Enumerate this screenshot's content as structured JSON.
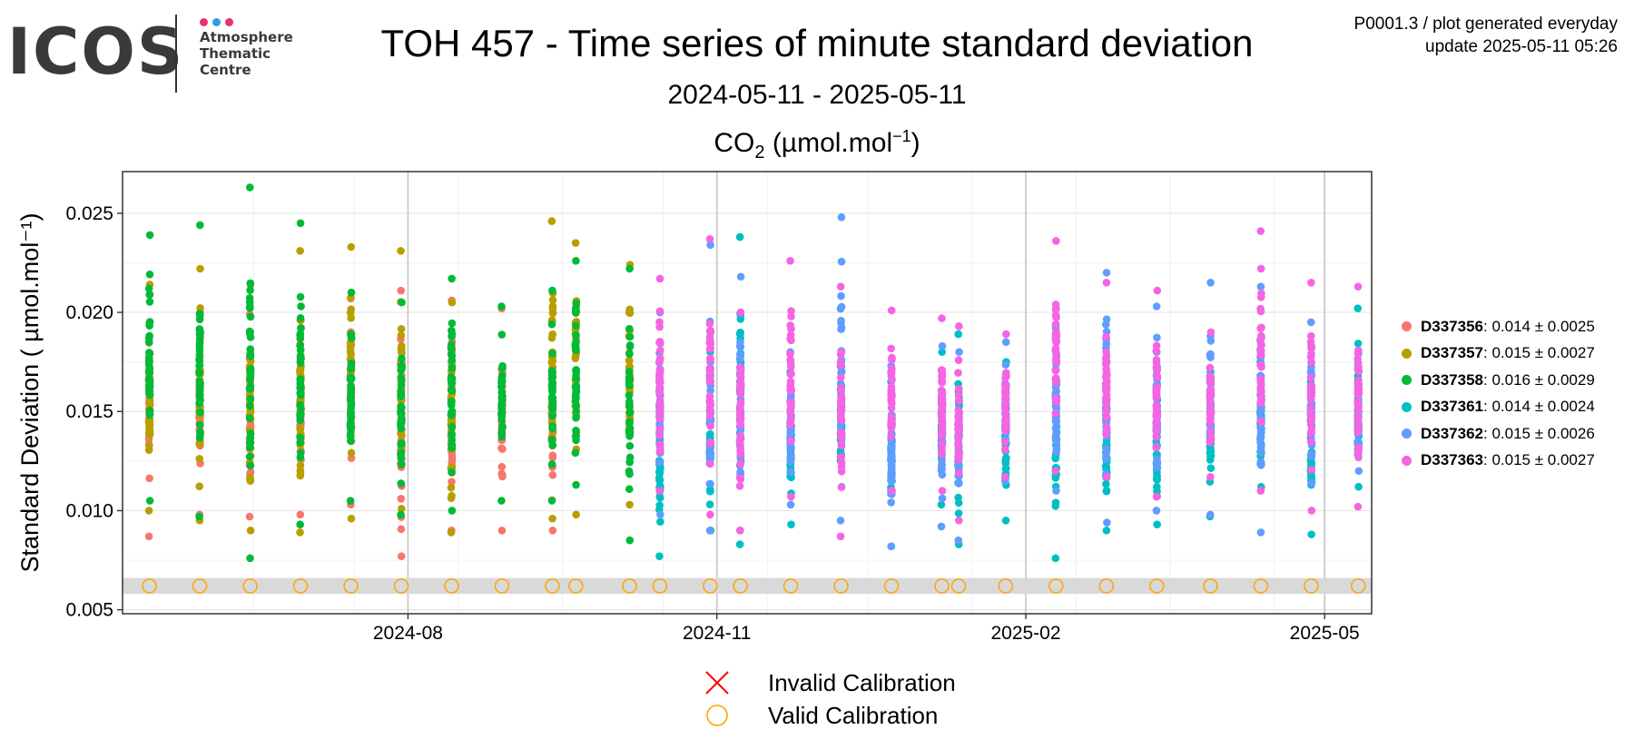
{
  "logo": {
    "text": "ICOS",
    "sub": [
      "Atmosphere",
      "Thematic",
      "Centre"
    ],
    "dot_colors": [
      "#e8336d",
      "#2f9de6",
      "#e8336d"
    ]
  },
  "header": {
    "title": "TOH 457 - Time series of minute standard deviation",
    "subtitle": "2024-05-11 - 2025-05-11",
    "species_base": "CO",
    "species_sub": "2",
    "species_unit_open": " (µmol.mol",
    "species_unit_sup": "−1",
    "species_unit_close": ")",
    "meta_line1": "P0001.3 / plot generated everyday",
    "meta_line2": "update  2025-05-11 05:26"
  },
  "legend": [
    {
      "id": "D337356",
      "stat": ": 0.014 ± 0.0025",
      "color": "#f8766d"
    },
    {
      "id": "D337357",
      "stat": ": 0.015 ± 0.0027",
      "color": "#b79f00"
    },
    {
      "id": "D337358",
      "stat": ": 0.016 ± 0.0029",
      "color": "#00ba38"
    },
    {
      "id": "D337361",
      "stat": ": 0.014 ± 0.0024",
      "color": "#00bfc4"
    },
    {
      "id": "D337362",
      "stat": ": 0.015 ± 0.0026",
      "color": "#619cff"
    },
    {
      "id": "D337363",
      "stat": ": 0.015 ± 0.0027",
      "color": "#f564e3"
    }
  ],
  "bottom_legend": {
    "invalid": "Invalid Calibration",
    "valid": "Valid Calibration",
    "invalid_color": "#ff0000",
    "valid_color": "#ffa500"
  },
  "chart_data": {
    "type": "scatter",
    "ylabel": "Standard Deviation ( µmol.mol⁻¹)",
    "xlabel": "",
    "x_range": [
      "2024-05-11",
      "2025-05-11"
    ],
    "ylim": [
      0.0048,
      0.0271
    ],
    "yticks": [
      0.005,
      0.01,
      0.015,
      0.02,
      0.025
    ],
    "ytick_labels": [
      "0.005",
      "0.010",
      "0.015",
      "0.020",
      "0.025"
    ],
    "xticks": [
      "2024-08-01",
      "2024-11-01",
      "2025-02-01",
      "2025-05-01"
    ],
    "xtick_labels": [
      "2024-08",
      "2024-11",
      "2025-02",
      "2025-05"
    ],
    "grid": true,
    "calibration_band": [
      0.0058,
      0.0066
    ],
    "calibration_level": 0.0062,
    "calibration_dates": [
      "2024-05-16",
      "2024-05-31",
      "2024-06-15",
      "2024-06-30",
      "2024-07-15",
      "2024-07-30",
      "2024-08-14",
      "2024-08-29",
      "2024-09-13",
      "2024-09-20",
      "2024-10-06",
      "2024-10-15",
      "2024-10-30",
      "2024-11-08",
      "2024-11-23",
      "2024-12-08",
      "2024-12-23",
      "2025-01-07",
      "2025-01-12",
      "2025-01-26",
      "2025-02-10",
      "2025-02-25",
      "2025-03-12",
      "2025-03-28",
      "2025-04-12",
      "2025-04-27",
      "2025-05-11"
    ],
    "series": [
      {
        "name": "D337356",
        "color": "#f8766d",
        "dates": [
          "2024-05-16",
          "2024-05-31",
          "2024-06-15",
          "2024-06-30",
          "2024-07-15",
          "2024-07-30",
          "2024-08-14",
          "2024-08-29",
          "2024-09-13"
        ],
        "min": [
          0.0087,
          0.0098,
          0.0097,
          0.0098,
          0.0103,
          0.0077,
          0.009,
          0.009,
          0.009
        ],
        "max": [
          0.0209,
          0.02,
          0.0199,
          0.0196,
          0.0207,
          0.0211,
          0.0206,
          0.0202,
          0.02
        ]
      },
      {
        "name": "D337357",
        "color": "#b79f00",
        "dates": [
          "2024-05-16",
          "2024-05-31",
          "2024-06-15",
          "2024-06-30",
          "2024-07-15",
          "2024-07-30",
          "2024-08-14",
          "2024-09-13",
          "2024-09-20",
          "2024-10-06"
        ],
        "min": [
          0.01,
          0.0095,
          0.009,
          0.0089,
          0.0096,
          0.0101,
          0.0089,
          0.0096,
          0.0098,
          0.0103
        ],
        "max": [
          0.0214,
          0.0222,
          0.0214,
          0.0231,
          0.0233,
          0.0231,
          0.0205,
          0.0246,
          0.0235,
          0.0224
        ]
      },
      {
        "name": "D337358",
        "color": "#00ba38",
        "dates": [
          "2024-05-16",
          "2024-05-31",
          "2024-06-15",
          "2024-06-30",
          "2024-07-15",
          "2024-07-30",
          "2024-08-14",
          "2024-08-29",
          "2024-09-13",
          "2024-09-20",
          "2024-10-06"
        ],
        "min": [
          0.0105,
          0.0097,
          0.0076,
          0.0093,
          0.0105,
          0.0098,
          0.01,
          0.0105,
          0.0105,
          0.0113,
          0.0085
        ],
        "max": [
          0.0239,
          0.0244,
          0.0263,
          0.0245,
          0.021,
          0.0205,
          0.0217,
          0.0203,
          0.0211,
          0.0226,
          0.0222
        ]
      },
      {
        "name": "D337361",
        "color": "#00bfc4",
        "dates": [
          "2024-10-15",
          "2024-10-30",
          "2024-11-08",
          "2024-11-23",
          "2024-12-08",
          "2024-12-23",
          "2025-01-07",
          "2025-01-12",
          "2025-01-26",
          "2025-02-10",
          "2025-02-25",
          "2025-03-12",
          "2025-03-28",
          "2025-04-12",
          "2025-04-27",
          "2025-05-11"
        ],
        "min": [
          0.0077,
          0.009,
          0.0083,
          0.0093,
          0.0112,
          0.0082,
          0.0103,
          0.0083,
          0.0095,
          0.0076,
          0.009,
          0.0093,
          0.0097,
          0.0112,
          0.0088,
          0.0112
        ],
        "max": [
          0.016,
          0.018,
          0.0238,
          0.017,
          0.017,
          0.0165,
          0.018,
          0.0189,
          0.0175,
          0.0202,
          0.0175,
          0.0168,
          0.017,
          0.0175,
          0.0165,
          0.0202
        ]
      },
      {
        "name": "D337362",
        "color": "#619cff",
        "dates": [
          "2024-10-15",
          "2024-10-30",
          "2024-11-08",
          "2024-11-23",
          "2024-12-08",
          "2024-12-23",
          "2025-01-07",
          "2025-01-12",
          "2025-01-26",
          "2025-02-10",
          "2025-02-25",
          "2025-03-12",
          "2025-03-28",
          "2025-04-12",
          "2025-04-27",
          "2025-05-11"
        ],
        "min": [
          0.0098,
          0.009,
          0.009,
          0.0103,
          0.0095,
          0.0082,
          0.0092,
          0.0085,
          0.0115,
          0.011,
          0.0094,
          0.01,
          0.0098,
          0.0089,
          0.0114,
          0.012
        ],
        "max": [
          0.02,
          0.0234,
          0.0218,
          0.018,
          0.0248,
          0.0173,
          0.0183,
          0.018,
          0.0185,
          0.0192,
          0.022,
          0.0203,
          0.0215,
          0.0213,
          0.0195,
          0.018
        ]
      },
      {
        "name": "D337363",
        "color": "#f564e3",
        "dates": [
          "2024-10-15",
          "2024-10-30",
          "2024-11-08",
          "2024-11-23",
          "2024-12-08",
          "2024-12-23",
          "2025-01-07",
          "2025-01-12",
          "2025-01-26",
          "2025-02-10",
          "2025-02-25",
          "2025-03-12",
          "2025-03-28",
          "2025-04-12",
          "2025-04-27",
          "2025-05-11"
        ],
        "min": [
          0.011,
          0.0098,
          0.009,
          0.0107,
          0.0087,
          0.011,
          0.011,
          0.0095,
          0.0117,
          0.012,
          0.0117,
          0.0107,
          0.0117,
          0.011,
          0.01,
          0.0102
        ],
        "max": [
          0.0217,
          0.0237,
          0.02,
          0.0226,
          0.0213,
          0.0201,
          0.0197,
          0.0193,
          0.0189,
          0.0236,
          0.0215,
          0.0211,
          0.019,
          0.0241,
          0.0215,
          0.0213
        ]
      }
    ]
  }
}
